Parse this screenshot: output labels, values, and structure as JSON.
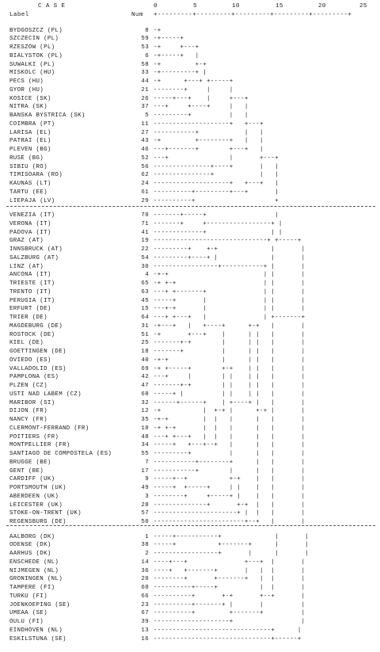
{
  "header": {
    "case": "C A S E",
    "label": "Label",
    "num": "Num",
    "scale_ticks": [
      "0",
      "5",
      "10",
      "15",
      "20",
      "25"
    ],
    "scale_line": "+---------+---------+---------+---------+---------+"
  },
  "groups": [
    {
      "rows": [
        {
          "label": "BYDGOSZCZ (PL)",
          "num": "8",
          "tree": "-+"
        },
        {
          "label": "SZCZECIN (PL)",
          "num": "59",
          "tree": "-+-----+"
        },
        {
          "label": "RZESZOW (PL)",
          "num": "53",
          "tree": "-+     +---+"
        },
        {
          "label": "BIALYSTOK (PL)",
          "num": "6",
          "tree": "-+-----+   |"
        },
        {
          "label": "SUWALKI (PL)",
          "num": "58",
          "tree": "-+         +-+"
        },
        {
          "label": "MISKOLC (HU)",
          "num": "33",
          "tree": "-+---------+ |"
        },
        {
          "label": "PECS (HU)",
          "num": "44",
          "tree": "-+      +---+ +-----+"
        },
        {
          "label": "GYOR (HU)",
          "num": "21",
          "tree": "--------+     |     |"
        },
        {
          "label": "KOSICE (SK)",
          "num": "26",
          "tree": "-----+---+    |     +---+"
        },
        {
          "label": "NITRA (SK)",
          "num": "37",
          "tree": "---+     +----+     |   |"
        },
        {
          "label": "BANSKA BYSTRICA (SK)",
          "num": "5",
          "tree": "---------+          |   |"
        },
        {
          "label": "COIMBRA (PT)",
          "num": "11",
          "tree": "--------------------+   +---+"
        },
        {
          "label": "LARISA (EL)",
          "num": "27",
          "tree": "-----------+            |   |"
        },
        {
          "label": "PATRAI (EL)",
          "num": "43",
          "tree": "-+         +--------+   |   |"
        },
        {
          "label": "PLEVEN (BG)",
          "num": "46",
          "tree": "---+-------+        +---+   |"
        },
        {
          "label": "RUSE (BG)",
          "num": "52",
          "tree": "---+                |       +---+"
        },
        {
          "label": "SIBIU (RO)",
          "num": "56",
          "tree": "---------------+----+       |   |"
        },
        {
          "label": "TIMISOARA (RO)",
          "num": "62",
          "tree": "---------------+            |   |"
        },
        {
          "label": "KAUNAS (LT)",
          "num": "24",
          "tree": "--------------------+   +---+   |"
        },
        {
          "label": "TARTU (EE)",
          "num": "61",
          "tree": "----------+---------+---+       |"
        },
        {
          "label": "LIEPAJA (LV)",
          "num": "29",
          "tree": "----------+                     +"
        }
      ]
    },
    {
      "rows": [
        {
          "label": "VENEZIA (IT)",
          "num": "70",
          "tree": "-------+-----+                  |"
        },
        {
          "label": "VERONA (IT)",
          "num": "71",
          "tree": "-------+     +-----------------+ |"
        },
        {
          "label": "PADOVA (IT)",
          "num": "41",
          "tree": "-------------+                 | |"
        },
        {
          "label": "GRAZ (AT)",
          "num": "19",
          "tree": "------------------------------+ +-----+"
        },
        {
          "label": "INNSBRUCK (AT)",
          "num": "22",
          "tree": "---------+    +-+              |       |"
        },
        {
          "label": "SALZBURG (AT)",
          "num": "54",
          "tree": "---------+----+ |              |       |"
        },
        {
          "label": "LINZ (AT)",
          "num": "30",
          "tree": "-----------------+-----------+ |       |"
        },
        {
          "label": "ANCONA (IT)",
          "num": "4",
          "tree": "-+-+                         | |       |"
        },
        {
          "label": "TRIESTE (IT)",
          "num": "65",
          "tree": "-+ +-+                       | |       |"
        },
        {
          "label": "TRENTO (IT)",
          "num": "63",
          "tree": "---+ +-------+               | |       |"
        },
        {
          "label": "PERUGIA (IT)",
          "num": "45",
          "tree": "-----+       |               | |       |"
        },
        {
          "label": "ERFURT (DE)",
          "num": "15",
          "tree": "---+-+       |               | |       |"
        },
        {
          "label": "TRIER (DE)",
          "num": "64",
          "tree": "---+ +---+   |               | +-------+"
        },
        {
          "label": "MAGDEBURG (DE)",
          "num": "31",
          "tree": "-+---+   |   +----+      +-+   |       |"
        },
        {
          "label": "ROSTOCK (DE)",
          "num": "51",
          "tree": "-+       +---+    |      | |   |       |"
        },
        {
          "label": "KIEL (DE)",
          "num": "25",
          "tree": "-------+-+        |      | |   |       |"
        },
        {
          "label": "GOETTINGEN (DE)",
          "num": "18",
          "tree": "-------+          |      | |   |       |"
        },
        {
          "label": "OVIEDO (ES)",
          "num": "40",
          "tree": "-+-+              |      | |   |       |"
        },
        {
          "label": "VALLADOLID (ES)",
          "num": "69",
          "tree": "-+ +-----+        +-+    | |   |       |"
        },
        {
          "label": "PAMPLONA (ES)",
          "num": "42",
          "tree": "---+     |        | |    | |   |       |"
        },
        {
          "label": "PLZEN (CZ)",
          "num": "47",
          "tree": "-------+-+        | |    | |   |       |"
        },
        {
          "label": "USTI NAD LABEM (CZ)",
          "num": "68",
          "tree": "-----+ |          | |    | |   |       |"
        },
        {
          "label": "MARIBOR (SI)",
          "num": "32",
          "tree": "------+------+    | +----+ |   |       |"
        },
        {
          "label": "DIJON (FR)",
          "num": "12",
          "tree": "-+           |  +-+ |      +-+ |       |"
        },
        {
          "label": "NANCY (FR)",
          "num": "35",
          "tree": "-+-+         |  |   |      |   |       |"
        },
        {
          "label": "CLERMONT-FERRAND (FR)",
          "num": "10",
          "tree": "-+ +-+       |  |   |      |   |       |"
        },
        {
          "label": "POITIERS (FR)",
          "num": "48",
          "tree": "---+ +---+   |  |   |      |   |       |"
        },
        {
          "label": "MONTPELLIER (FR)",
          "num": "34",
          "tree": "-----+   +---+--+   |      |   |       |"
        },
        {
          "label": "SANTIAGO DE COMPOSTELA (ES)",
          "num": "55",
          "tree": "---------+          |      |   |       |"
        },
        {
          "label": "BRUGGE (BE)",
          "num": "7",
          "tree": "-----------+--------+      |   |       |"
        },
        {
          "label": "GENT (BE)",
          "num": "17",
          "tree": "-----------+        |      |   |       |"
        },
        {
          "label": "CARDIFF (UK)",
          "num": "9",
          "tree": "-----+--+           +-+    |   |       |"
        },
        {
          "label": "PORTSMOUTH (UK)",
          "num": "49",
          "tree": "-----+  +-----+     | |    |   |       |"
        },
        {
          "label": "ABERDEEN (UK)",
          "num": "3",
          "tree": "--------+     +-----+ |    |   |       |"
        },
        {
          "label": "LEICESTER (UK)",
          "num": "28",
          "tree": "--------------+       +-+  |   |       |"
        },
        {
          "label": "STOKE-ON-TRENT (UK)",
          "num": "57",
          "tree": "----------------------+ |  |   |       |"
        },
        {
          "label": "REGENSBURG (DE)",
          "num": "50",
          "tree": "------------------------+--+   |       |"
        }
      ]
    },
    {
      "rows": [
        {
          "label": "AALBORG (DK)",
          "num": "1",
          "tree": "-----+-----------+              |       |"
        },
        {
          "label": "ODENSE (DK)",
          "num": "38",
          "tree": "-----+           +-------+      |       |"
        },
        {
          "label": "AARHUS (DK)",
          "num": "2",
          "tree": "-----------------+       |      |       |"
        },
        {
          "label": "ENSCHEDE (NL)",
          "num": "14",
          "tree": "----+---+               +---+  |       |"
        },
        {
          "label": "NIJMEGEN (NL)",
          "num": "36",
          "tree": "----+   +-------+       |   |  |       |"
        },
        {
          "label": "GRONINGEN (NL)",
          "num": "20",
          "tree": "--------+       +-------+   |  |       |"
        },
        {
          "label": "TAMPERE (FI)",
          "num": "60",
          "tree": "----------+-----+           |  |       |"
        },
        {
          "label": "TURKU (FI)",
          "num": "66",
          "tree": "----------+       +-+       +--+       |"
        },
        {
          "label": "JOENKOEPING (SE)",
          "num": "23",
          "tree": "----------+-------+ |       |          |"
        },
        {
          "label": "UMEAA (SE)",
          "num": "67",
          "tree": "----------+         +-------+          |"
        },
        {
          "label": "OULU (FI)",
          "num": "39",
          "tree": "--------------------+                  |"
        },
        {
          "label": "EINDHOVEN (NL)",
          "num": "13",
          "tree": "-------------------------------+      |"
        },
        {
          "label": "ESKILSTUNA (SE)",
          "num": "16",
          "tree": "-------------------------------+------+"
        }
      ]
    }
  ]
}
